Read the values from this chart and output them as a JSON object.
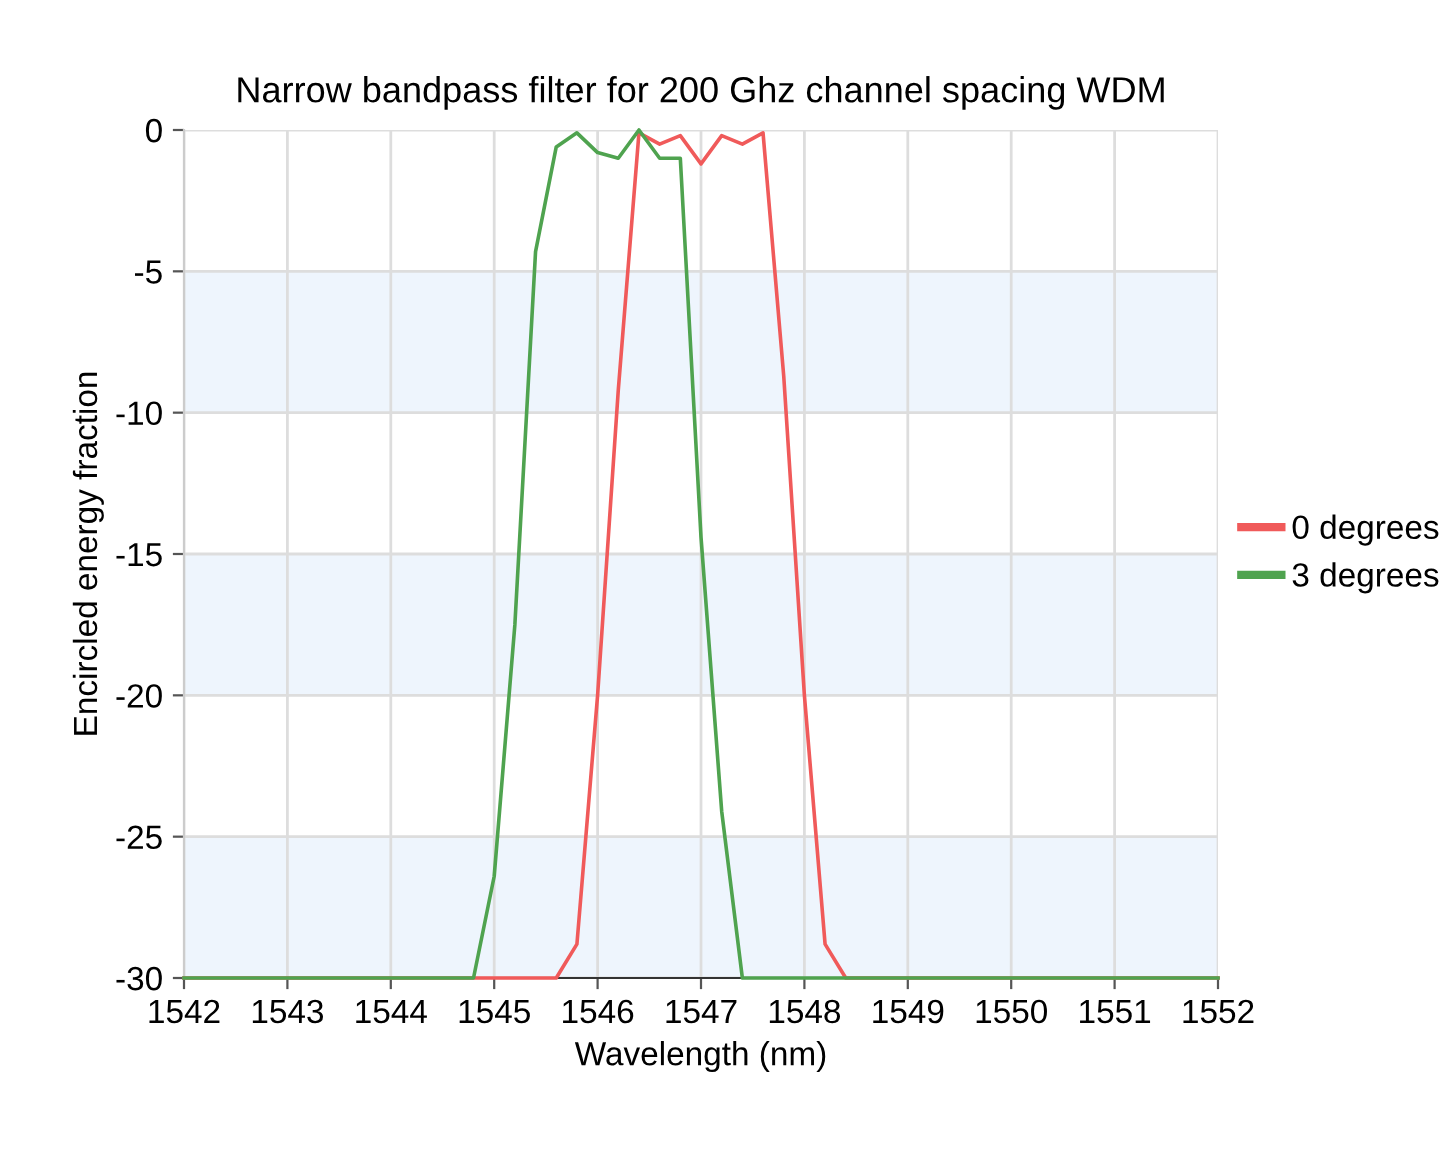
{
  "chart_data": {
    "type": "line",
    "title": "Narrow bandpass filter for 200 Ghz channel spacing WDM",
    "xlabel": "Wavelength (nm)",
    "ylabel": "Encircled energy fraction",
    "xlim": [
      1542,
      1552
    ],
    "xticks": [
      1542,
      1543,
      1544,
      1545,
      1546,
      1547,
      1548,
      1549,
      1550,
      1551,
      1552
    ],
    "ylim": [
      -30,
      0
    ],
    "yticks": [
      -30,
      -25,
      -20,
      -15,
      -10,
      -5,
      0
    ],
    "grid": true,
    "legend": "right",
    "marker": "none",
    "line_style": "solid",
    "bands": [
      {
        "axis": "y",
        "from": -10,
        "to": -5,
        "color": "#eef5fd"
      },
      {
        "axis": "y",
        "from": -20,
        "to": -15,
        "color": "#eef5fd"
      },
      {
        "axis": "y",
        "from": -30,
        "to": -25,
        "color": "#eef5fd"
      }
    ],
    "series": [
      {
        "name": "0 degrees",
        "color": "#f05a5a",
        "x": [
          1542,
          1545.6,
          1545.8,
          1546,
          1546.2,
          1546.4,
          1546.6,
          1546.8,
          1547,
          1547.2,
          1547.4,
          1547.6,
          1547.8,
          1548,
          1548.2,
          1548.4,
          1552
        ],
        "values": [
          -30,
          -30,
          -28.8,
          -20,
          -9.2,
          -0.1,
          -0.5,
          -0.2,
          -1.2,
          -0.2,
          -0.5,
          -0.1,
          -8.7,
          -20,
          -28.8,
          -30,
          -30
        ]
      },
      {
        "name": "3 degrees",
        "color": "#4fa34f",
        "x": [
          1542,
          1544.8,
          1545,
          1545.2,
          1545.4,
          1545.6,
          1545.8,
          1546,
          1546.2,
          1546.4,
          1546.6,
          1546.8,
          1547,
          1547.2,
          1547.4,
          1552
        ],
        "values": [
          -30,
          -30,
          -26.4,
          -17.5,
          -4.3,
          -0.6,
          -0.1,
          -0.8,
          -1.0,
          0,
          -1.0,
          -1.0,
          -14.4,
          -24.1,
          -30,
          -30
        ]
      }
    ]
  }
}
